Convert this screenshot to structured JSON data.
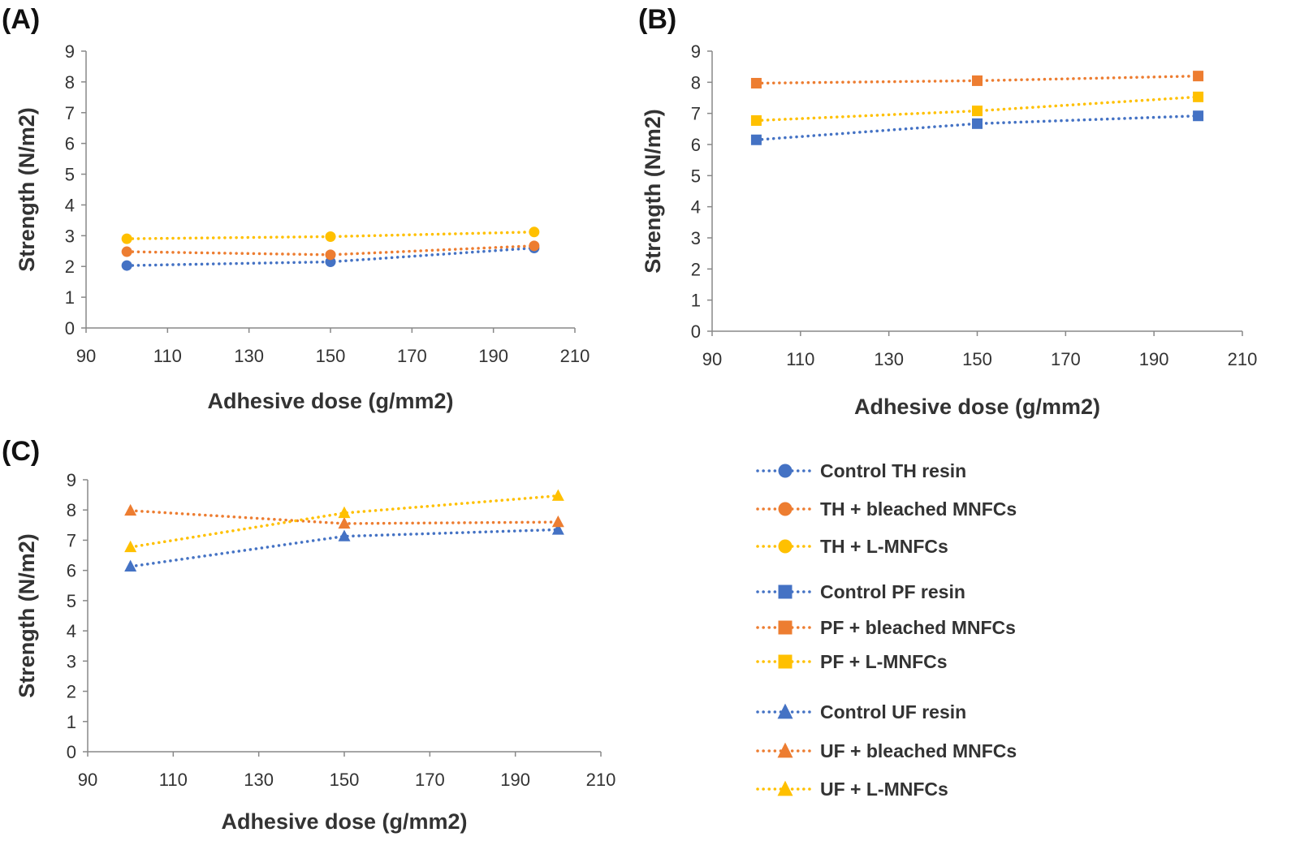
{
  "colors": {
    "blue": "#4472C4",
    "orange": "#ED7D31",
    "yellow": "#FFC000",
    "axis": "#888888",
    "text": "#333333"
  },
  "chart_data": [
    {
      "id": "A",
      "panel_label": "(A)",
      "type": "line",
      "marker": "circle",
      "xlabel": "Adhesive dose (g/mm2)",
      "ylabel": "Strength (N/m2)",
      "xlim": [
        90,
        210
      ],
      "ylim": [
        0,
        9
      ],
      "xticks": [
        "90",
        "110",
        "130",
        "150",
        "170",
        "190",
        "210"
      ],
      "yticks": [
        "0",
        "1",
        "2",
        "3",
        "4",
        "5",
        "6",
        "7",
        "8",
        "9"
      ],
      "x": [
        100,
        150,
        200
      ],
      "series": [
        {
          "name": "Control TH resin",
          "color": "blue",
          "values": [
            2.03,
            2.15,
            2.6
          ]
        },
        {
          "name": "TH + bleached MNFCs",
          "color": "orange",
          "values": [
            2.48,
            2.38,
            2.67
          ]
        },
        {
          "name": "TH + L-MNFCs",
          "color": "yellow",
          "values": [
            2.9,
            2.97,
            3.12
          ]
        }
      ]
    },
    {
      "id": "B",
      "panel_label": "(B)",
      "type": "line",
      "marker": "square",
      "xlabel": "Adhesive dose (g/mm2)",
      "ylabel": "Strength (N/m2)",
      "xlim": [
        90,
        210
      ],
      "ylim": [
        0,
        9
      ],
      "xticks": [
        "90",
        "110",
        "130",
        "150",
        "170",
        "190",
        "210"
      ],
      "yticks": [
        "0",
        "1",
        "2",
        "3",
        "4",
        "5",
        "6",
        "7",
        "8",
        "9"
      ],
      "x": [
        100,
        150,
        200
      ],
      "series": [
        {
          "name": "Control PF resin",
          "color": "blue",
          "values": [
            6.15,
            6.67,
            6.92
          ]
        },
        {
          "name": "PF + bleached MNFCs",
          "color": "orange",
          "values": [
            7.97,
            8.05,
            8.2
          ]
        },
        {
          "name": "PF + L-MNFCs",
          "color": "yellow",
          "values": [
            6.77,
            7.08,
            7.53
          ]
        }
      ]
    },
    {
      "id": "C",
      "panel_label": "(C)",
      "type": "line",
      "marker": "triangle",
      "xlabel": "Adhesive dose (g/mm2)",
      "ylabel": "Strength (N/m2)",
      "xlim": [
        90,
        210
      ],
      "ylim": [
        0,
        9
      ],
      "xticks": [
        "90",
        "110",
        "130",
        "150",
        "170",
        "190",
        "210"
      ],
      "yticks": [
        "0",
        "1",
        "2",
        "3",
        "4",
        "5",
        "6",
        "7",
        "8",
        "9"
      ],
      "x": [
        100,
        150,
        200
      ],
      "series": [
        {
          "name": "Control UF resin",
          "color": "blue",
          "values": [
            6.13,
            7.13,
            7.35
          ]
        },
        {
          "name": "UF + bleached MNFCs",
          "color": "orange",
          "values": [
            7.98,
            7.55,
            7.6
          ]
        },
        {
          "name": "UF + L-MNFCs",
          "color": "yellow",
          "values": [
            6.77,
            7.9,
            8.47
          ]
        }
      ]
    }
  ],
  "legend": {
    "groups": [
      {
        "marker": "circle",
        "items": [
          {
            "label": "Control TH resin",
            "color": "blue"
          },
          {
            "label": "TH + bleached MNFCs",
            "color": "orange"
          },
          {
            "label": "TH + L-MNFCs",
            "color": "yellow"
          }
        ]
      },
      {
        "marker": "square",
        "items": [
          {
            "label": "Control PF resin",
            "color": "blue"
          },
          {
            "label": "PF + bleached MNFCs",
            "color": "orange"
          },
          {
            "label": "PF + L-MNFCs",
            "color": "yellow"
          }
        ]
      },
      {
        "marker": "triangle",
        "items": [
          {
            "label": "Control UF resin",
            "color": "blue"
          },
          {
            "label": "UF + bleached MNFCs",
            "color": "orange"
          },
          {
            "label": "UF + L-MNFCs",
            "color": "yellow"
          }
        ]
      }
    ]
  }
}
